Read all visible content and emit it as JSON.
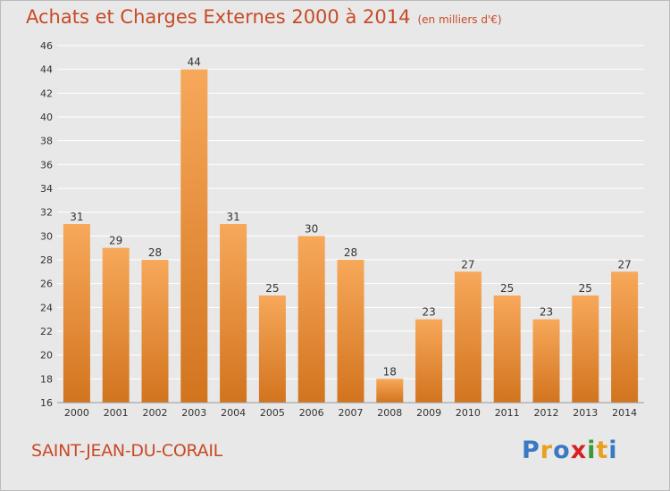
{
  "title": "Achats et Charges Externes 2000 à 2014",
  "unit": "(en milliers d'€)",
  "city": "SAINT-JEAN-DU-CORAIL",
  "logo": {
    "text": "Proxiti",
    "letters": [
      {
        "ch": "P",
        "color": "#3a78c2"
      },
      {
        "ch": "r",
        "color": "#e8a020"
      },
      {
        "ch": "o",
        "color": "#3a78c2"
      },
      {
        "ch": "x",
        "color": "#d82020"
      },
      {
        "ch": "i",
        "color": "#3a9a3a"
      },
      {
        "ch": "t",
        "color": "#e8a020"
      },
      {
        "ch": "i",
        "color": "#3a78c2"
      }
    ]
  },
  "colors": {
    "title": "#c84a26",
    "bar_light": "#f7a85a",
    "bar_dark": "#d2741e",
    "grid": "#ffffff",
    "axis_text": "#333333"
  },
  "chart_data": {
    "type": "bar",
    "categories": [
      "2000",
      "2001",
      "2002",
      "2003",
      "2004",
      "2005",
      "2006",
      "2007",
      "2008",
      "2009",
      "2010",
      "2011",
      "2012",
      "2013",
      "2014"
    ],
    "values": [
      31,
      29,
      28,
      44,
      31,
      25,
      30,
      28,
      18,
      23,
      27,
      25,
      23,
      25,
      27
    ],
    "ylim": [
      16,
      46
    ],
    "yticks": [
      16,
      18,
      20,
      22,
      24,
      26,
      28,
      30,
      32,
      34,
      36,
      38,
      40,
      42,
      44,
      46
    ],
    "grid": true
  }
}
